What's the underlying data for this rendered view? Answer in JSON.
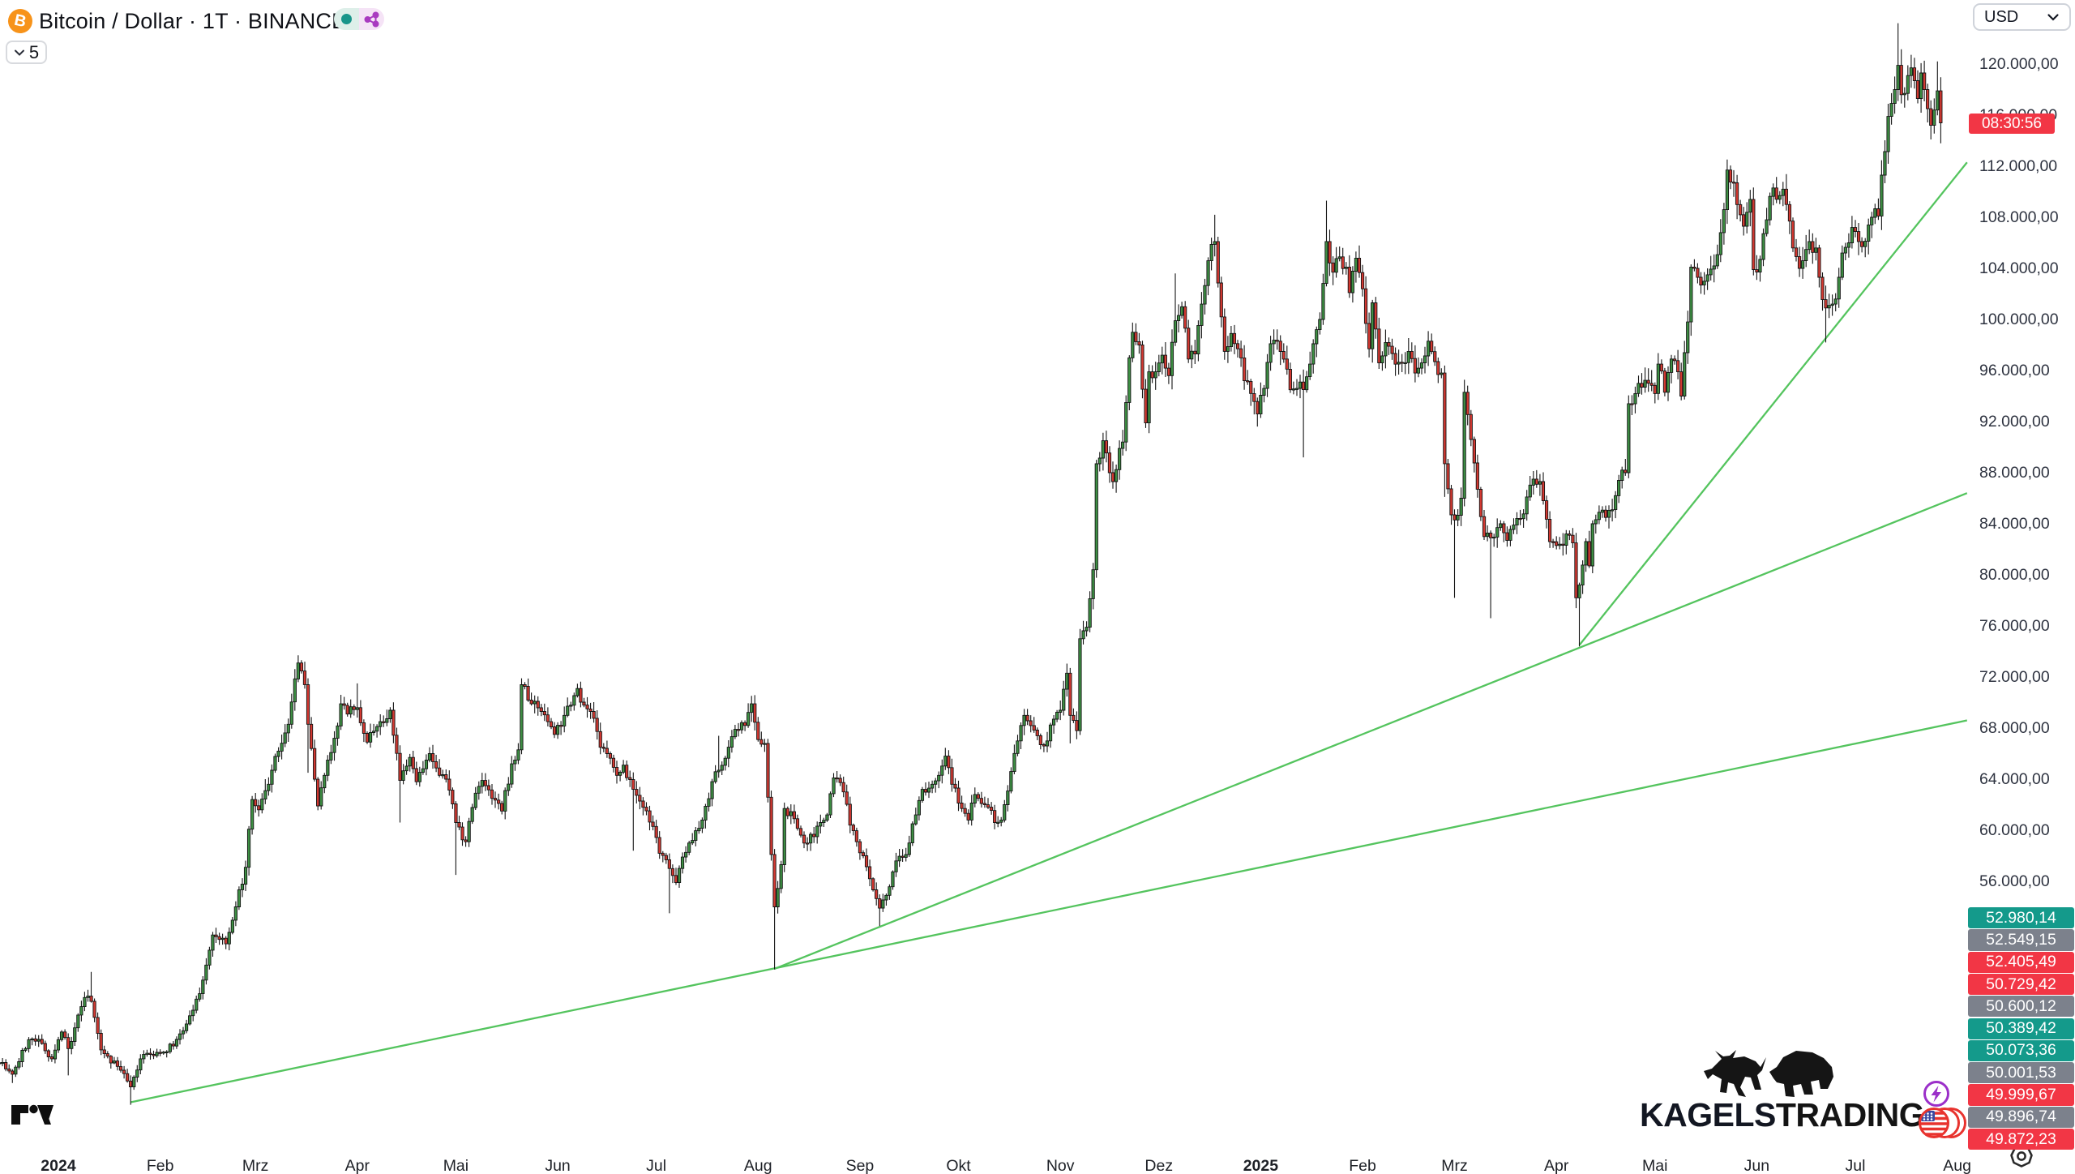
{
  "header": {
    "symbol_title": "Bitcoin / Dollar · 1T · BINANCE",
    "bitcoin_glyph": "B",
    "interval_count": "5"
  },
  "toolbar": {
    "currency": "USD"
  },
  "price_axis": {
    "countdown": {
      "text": "08:30:56",
      "color": "#f23645"
    },
    "ticks": [
      {
        "price": 120000,
        "label": "120.000,00"
      },
      {
        "price": 116000,
        "label": "116.000,00"
      },
      {
        "price": 112000,
        "label": "112.000,00"
      },
      {
        "price": 108000,
        "label": "108.000,00"
      },
      {
        "price": 104000,
        "label": "104.000,00"
      },
      {
        "price": 100000,
        "label": "100.000,00"
      },
      {
        "price": 96000,
        "label": "96.000,00"
      },
      {
        "price": 92000,
        "label": "92.000,00"
      },
      {
        "price": 88000,
        "label": "88.000,00"
      },
      {
        "price": 84000,
        "label": "84.000,00"
      },
      {
        "price": 80000,
        "label": "80.000,00"
      },
      {
        "price": 76000,
        "label": "76.000,00"
      },
      {
        "price": 72000,
        "label": "72.000,00"
      },
      {
        "price": 68000,
        "label": "68.000,00"
      },
      {
        "price": 64000,
        "label": "64.000,00"
      },
      {
        "price": 60000,
        "label": "60.000,00"
      },
      {
        "price": 56000,
        "label": "56.000,00"
      }
    ],
    "level_labels": [
      {
        "text": "52.980,14",
        "color": "#149a8b"
      },
      {
        "text": "52.549,15",
        "color": "#7c818c"
      },
      {
        "text": "52.405,49",
        "color": "#f23645"
      },
      {
        "text": "50.729,42",
        "color": "#f23645"
      },
      {
        "text": "50.600,12",
        "color": "#7c818c"
      },
      {
        "text": "50.389,42",
        "color": "#149a8b"
      },
      {
        "text": "50.073,36",
        "color": "#149a8b"
      },
      {
        "text": "50.001,53",
        "color": "#7c818c"
      },
      {
        "text": "49.999,67",
        "color": "#f23645"
      },
      {
        "text": "49.896,74",
        "color": "#7c818c"
      },
      {
        "text": "49.872,23",
        "color": "#f23645"
      }
    ]
  },
  "time_axis": {
    "labels": [
      {
        "text": "2024",
        "day": 0,
        "bold": true
      },
      {
        "text": "Feb",
        "day": 31
      },
      {
        "text": "Mrz",
        "day": 60
      },
      {
        "text": "Apr",
        "day": 91
      },
      {
        "text": "Mai",
        "day": 121
      },
      {
        "text": "Jun",
        "day": 152
      },
      {
        "text": "Jul",
        "day": 182
      },
      {
        "text": "Aug",
        "day": 213
      },
      {
        "text": "Sep",
        "day": 244
      },
      {
        "text": "Okt",
        "day": 274
      },
      {
        "text": "Nov",
        "day": 305
      },
      {
        "text": "Dez",
        "day": 335
      },
      {
        "text": "2025",
        "day": 366,
        "bold": true
      },
      {
        "text": "Feb",
        "day": 397
      },
      {
        "text": "Mrz",
        "day": 425
      },
      {
        "text": "Apr",
        "day": 456
      },
      {
        "text": "Mai",
        "day": 486
      },
      {
        "text": "Jun",
        "day": 517
      },
      {
        "text": "Jul",
        "day": 547
      },
      {
        "text": "Aug",
        "day": 578
      }
    ]
  },
  "chart_data": {
    "type": "candlestick",
    "title": "Bitcoin / Dollar · 1T · BINANCE",
    "ylabel": "USD",
    "ylim": [
      38000,
      124000
    ],
    "x_span_days": [
      -18,
      573
    ],
    "grid": false,
    "candle_up_color": "#3d8f43",
    "candle_down_color": "#d23831",
    "candle_border_color": "#141414",
    "trendline_color": "#54c45e",
    "noise_seed": 7,
    "prices_in": "thousand_usd",
    "anchors": [
      [
        -18,
        41.8
      ],
      [
        -14,
        40.9,
        null,
        40.2
      ],
      [
        -9,
        43.6
      ],
      [
        -5,
        43.3
      ],
      [
        -2,
        42.1
      ],
      [
        1,
        44.2
      ],
      [
        3,
        42.9,
        null,
        40.8
      ],
      [
        8,
        46.9
      ],
      [
        10,
        46.6,
        48.9,
        null
      ],
      [
        13,
        42.8
      ],
      [
        18,
        41.5
      ],
      [
        22,
        39.9,
        null,
        38.5
      ],
      [
        25,
        42.1
      ],
      [
        30,
        42.6
      ],
      [
        35,
        43.1
      ],
      [
        38,
        44.3
      ],
      [
        43,
        47.2
      ],
      [
        47,
        51.8
      ],
      [
        51,
        51.1
      ],
      [
        54,
        54.0
      ],
      [
        57,
        57.1
      ],
      [
        59,
        62.4
      ],
      [
        61,
        61.6
      ],
      [
        63,
        63.1,
        64.0,
        null
      ],
      [
        67,
        66.2
      ],
      [
        70,
        68.3
      ],
      [
        73,
        73.1,
        73.7,
        null
      ],
      [
        75,
        71.4
      ],
      [
        76,
        68.3,
        null,
        64.5
      ],
      [
        79,
        61.9
      ],
      [
        82,
        65.5
      ],
      [
        84,
        67.2
      ],
      [
        86,
        69.9
      ],
      [
        88,
        69.1
      ],
      [
        91,
        69.6,
        71.5,
        null
      ],
      [
        94,
        66.9
      ],
      [
        98,
        68.5
      ],
      [
        101,
        69.4
      ],
      [
        104,
        63.9,
        null,
        60.6
      ],
      [
        107,
        65.7
      ],
      [
        109,
        63.8
      ],
      [
        113,
        66.0
      ],
      [
        116,
        64.3
      ],
      [
        118,
        64.0
      ],
      [
        121,
        60.6,
        null,
        56.5
      ],
      [
        124,
        59.1
      ],
      [
        127,
        62.9
      ],
      [
        129,
        63.9
      ],
      [
        132,
        62.5
      ],
      [
        135,
        61.5
      ],
      [
        138,
        65.2
      ],
      [
        140,
        66.3
      ],
      [
        141,
        71.4,
        71.9,
        null
      ],
      [
        144,
        69.9
      ],
      [
        147,
        69.3
      ],
      [
        149,
        68.5
      ],
      [
        151,
        67.5
      ],
      [
        154,
        69.0
      ],
      [
        158,
        71.1
      ],
      [
        160,
        69.8
      ],
      [
        162,
        69.3
      ],
      [
        165,
        66.5
      ],
      [
        167,
        66.0
      ],
      [
        170,
        64.3
      ],
      [
        172,
        65.1
      ],
      [
        175,
        63.2,
        null,
        58.4
      ],
      [
        178,
        61.8
      ],
      [
        181,
        60.3
      ],
      [
        183,
        58.2
      ],
      [
        186,
        57.0,
        null,
        53.5
      ],
      [
        188,
        55.9
      ],
      [
        190,
        57.9
      ],
      [
        193,
        59.2
      ],
      [
        196,
        60.8
      ],
      [
        199,
        63.8
      ],
      [
        201,
        64.7,
        67.4,
        null
      ],
      [
        204,
        66.5
      ],
      [
        206,
        67.9
      ],
      [
        209,
        68.2
      ],
      [
        211,
        69.9
      ],
      [
        213,
        67.1
      ],
      [
        215,
        66.8
      ],
      [
        217,
        58.1
      ],
      [
        218,
        54.0,
        null,
        49.1
      ],
      [
        220,
        57.3
      ],
      [
        221,
        61.7
      ],
      [
        224,
        60.9
      ],
      [
        227,
        59.0
      ],
      [
        230,
        59.5
      ],
      [
        232,
        60.6
      ],
      [
        234,
        61.2
      ],
      [
        236,
        64.1
      ],
      [
        239,
        63.0
      ],
      [
        241,
        60.4
      ],
      [
        243,
        59.1
      ],
      [
        245,
        58.0
      ],
      [
        247,
        56.2
      ],
      [
        250,
        53.9,
        null,
        52.5
      ],
      [
        252,
        54.9
      ],
      [
        255,
        57.6
      ],
      [
        258,
        58.1
      ],
      [
        260,
        60.5
      ],
      [
        263,
        63.2
      ],
      [
        266,
        63.6
      ],
      [
        268,
        64.3
      ],
      [
        270,
        65.8
      ],
      [
        272,
        63.6
      ],
      [
        273,
        63.3
      ],
      [
        275,
        61.7
      ],
      [
        277,
        60.8
      ],
      [
        279,
        62.8
      ],
      [
        281,
        62.1
      ],
      [
        283,
        61.8
      ],
      [
        285,
        60.6
      ],
      [
        287,
        60.8
      ],
      [
        288,
        62.0
      ],
      [
        290,
        64.6
      ],
      [
        292,
        67.0
      ],
      [
        294,
        69.0,
        69.5,
        null
      ],
      [
        296,
        68.2
      ],
      [
        298,
        67.4
      ],
      [
        300,
        66.6
      ],
      [
        301,
        67.0
      ],
      [
        303,
        68.7
      ],
      [
        305,
        69.4
      ],
      [
        307,
        72.3
      ],
      [
        308,
        69.0,
        null,
        66.8
      ],
      [
        310,
        67.8
      ],
      [
        311,
        75.0
      ],
      [
        313,
        75.9
      ],
      [
        315,
        80.4
      ],
      [
        316,
        88.7
      ],
      [
        318,
        90.5
      ],
      [
        320,
        88.0
      ],
      [
        321,
        87.3
      ],
      [
        323,
        89.9
      ],
      [
        324,
        90.4
      ],
      [
        326,
        97.0
      ],
      [
        327,
        99.0,
        99.6,
        null
      ],
      [
        329,
        98.0
      ],
      [
        331,
        91.9
      ],
      [
        332,
        95.9
      ],
      [
        334,
        95.9
      ],
      [
        336,
        97.2
      ],
      [
        338,
        95.6
      ],
      [
        340,
        99.9,
        103.6,
        null
      ],
      [
        342,
        101.0
      ],
      [
        344,
        96.9
      ],
      [
        346,
        97.3
      ],
      [
        348,
        101.2
      ],
      [
        350,
        104.6
      ],
      [
        352,
        106.1,
        108.2,
        null
      ],
      [
        354,
        100.2
      ],
      [
        355,
        97.5
      ],
      [
        357,
        98.9
      ],
      [
        359,
        97.7
      ],
      [
        361,
        95.2
      ],
      [
        363,
        94.2
      ],
      [
        365,
        92.6
      ],
      [
        367,
        94.6
      ],
      [
        369,
        98.1
      ],
      [
        371,
        98.3
      ],
      [
        373,
        96.9
      ],
      [
        375,
        94.5
      ],
      [
        377,
        94.6
      ],
      [
        379,
        94.5,
        null,
        89.2
      ],
      [
        381,
        96.5
      ],
      [
        383,
        99.2
      ],
      [
        384,
        100.0
      ],
      [
        386,
        106.1,
        109.3,
        null
      ],
      [
        388,
        103.7
      ],
      [
        390,
        104.9
      ],
      [
        392,
        104.1
      ],
      [
        393,
        102.1
      ],
      [
        395,
        104.8
      ],
      [
        397,
        102.4
      ],
      [
        399,
        97.7
      ],
      [
        400,
        101.3
      ],
      [
        402,
        96.6
      ],
      [
        404,
        98.2
      ],
      [
        405,
        97.9
      ],
      [
        407,
        96.5
      ],
      [
        409,
        96.6
      ],
      [
        411,
        97.5
      ],
      [
        413,
        95.8
      ],
      [
        415,
        96.6
      ],
      [
        417,
        98.3
      ],
      [
        419,
        96.7
      ],
      [
        421,
        95.8
      ],
      [
        422,
        88.7,
        null,
        86.1
      ],
      [
        424,
        84.7
      ],
      [
        425,
        84.3,
        null,
        78.2
      ],
      [
        427,
        86.0
      ],
      [
        428,
        94.3
      ],
      [
        430,
        90.6
      ],
      [
        432,
        86.7
      ],
      [
        434,
        83.0
      ],
      [
        436,
        82.9,
        null,
        76.6
      ],
      [
        438,
        83.7
      ],
      [
        439,
        84.0
      ],
      [
        441,
        82.7
      ],
      [
        443,
        83.9
      ],
      [
        445,
        84.4
      ],
      [
        447,
        86.1
      ],
      [
        449,
        87.5
      ],
      [
        451,
        87.3
      ],
      [
        452,
        85.8
      ],
      [
        454,
        82.6
      ],
      [
        456,
        82.3
      ],
      [
        457,
        82.4
      ],
      [
        459,
        83.2
      ],
      [
        461,
        82.5
      ],
      [
        462,
        78.2
      ],
      [
        463,
        79.2,
        null,
        74.4
      ],
      [
        465,
        82.6
      ],
      [
        466,
        80.7
      ],
      [
        467,
        84.0
      ],
      [
        469,
        84.9
      ],
      [
        471,
        84.5
      ],
      [
        473,
        85.1
      ],
      [
        475,
        87.4
      ],
      [
        477,
        88.0
      ],
      [
        478,
        93.4
      ],
      [
        480,
        94.2
      ],
      [
        482,
        94.7
      ],
      [
        484,
        95.0
      ],
      [
        486,
        94.2
      ],
      [
        487,
        96.5
      ],
      [
        489,
        94.3
      ],
      [
        491,
        96.9
      ],
      [
        493,
        95.9
      ],
      [
        494,
        94.0
      ],
      [
        496,
        99.8
      ],
      [
        497,
        104.1
      ],
      [
        499,
        103.3
      ],
      [
        500,
        102.7
      ],
      [
        502,
        103.5
      ],
      [
        504,
        104.2
      ],
      [
        506,
        106.8
      ],
      [
        508,
        111.7,
        112.0,
        null
      ],
      [
        510,
        110.7
      ],
      [
        511,
        109.0
      ],
      [
        513,
        107.3
      ],
      [
        515,
        109.4
      ],
      [
        516,
        103.9
      ],
      [
        518,
        104.7
      ],
      [
        520,
        107.8
      ],
      [
        522,
        110.3
      ],
      [
        524,
        109.7
      ],
      [
        525,
        110.2
      ],
      [
        527,
        107.7
      ],
      [
        528,
        105.6
      ],
      [
        530,
        104.0
      ],
      [
        531,
        104.6
      ],
      [
        533,
        106.1
      ],
      [
        535,
        105.6
      ],
      [
        536,
        103.3
      ],
      [
        538,
        100.9,
        null,
        98.2
      ],
      [
        540,
        101.2
      ],
      [
        541,
        101.6
      ],
      [
        543,
        105.2
      ],
      [
        545,
        106.0
      ],
      [
        546,
        107.2
      ],
      [
        548,
        106.1
      ],
      [
        549,
        105.7
      ],
      [
        551,
        107.4
      ],
      [
        552,
        108.0
      ],
      [
        554,
        108.1
      ],
      [
        555,
        111.3
      ],
      [
        557,
        115.9
      ],
      [
        559,
        118.0
      ],
      [
        560,
        119.9,
        123.2,
        null
      ],
      [
        561,
        117.6
      ],
      [
        562,
        117.7
      ],
      [
        563,
        119.1
      ],
      [
        564,
        119.7
      ],
      [
        565,
        118.7
      ],
      [
        566,
        117.3
      ],
      [
        567,
        119.3
      ],
      [
        568,
        118.0
      ],
      [
        569,
        116.5
      ],
      [
        570,
        115.2
      ],
      [
        571,
        116.4
      ],
      [
        572,
        117.9,
        120.2,
        null
      ],
      [
        573,
        115.4,
        null,
        113.8
      ]
    ],
    "trendlines": [
      {
        "d1": 22,
        "p1": 38700,
        "d2": 581,
        "p2": 68600
      },
      {
        "d1": 218,
        "p1": 49150,
        "d2": 581,
        "p2": 86400
      },
      {
        "d1": 463,
        "p1": 74500,
        "d2": 581,
        "p2": 112300
      }
    ]
  },
  "watermark": {
    "kagels": {
      "part1": "KAGELS",
      "part2": "TRADING",
      "color1": "#2b4da3"
    }
  }
}
